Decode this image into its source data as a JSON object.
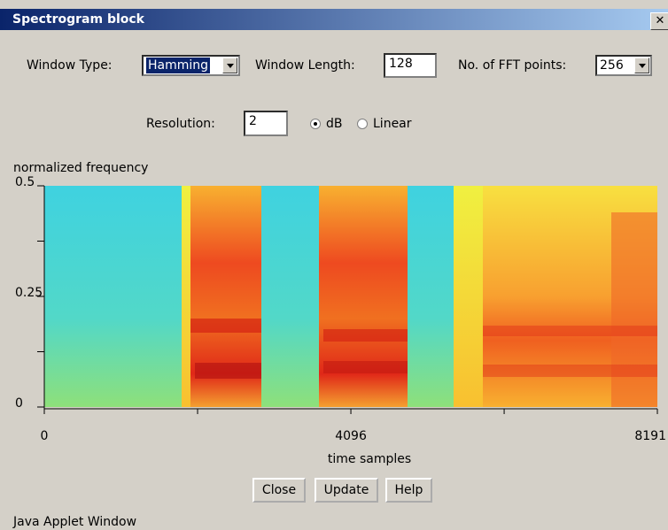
{
  "title_bar": {
    "title": "Spectrogram block"
  },
  "controls": {
    "window_type": {
      "label": "Window Type:",
      "value": "Hamming"
    },
    "window_length": {
      "label": "Window Length:",
      "value": "128"
    },
    "fft_points": {
      "label": "No. of FFT points:",
      "value": "256"
    },
    "resolution": {
      "label": "Resolution:",
      "value": "2"
    },
    "scale": {
      "options": [
        "dB",
        "Linear"
      ],
      "selected": "dB"
    }
  },
  "spectrogram": {
    "y_label": "normalized frequency",
    "x_label": "time samples",
    "xlim": [
      0,
      8191
    ],
    "xticks": [
      0,
      4096,
      8191
    ],
    "xticks_minor": [
      2048,
      6144
    ],
    "ylim": [
      0,
      0.5
    ],
    "yticks": [
      0,
      0.25,
      0.5
    ],
    "yticks_minor": [
      0.125,
      0.375
    ]
  },
  "buttons": [
    "Close",
    "Update",
    "Help"
  ],
  "footer": "Java Applet Window"
}
